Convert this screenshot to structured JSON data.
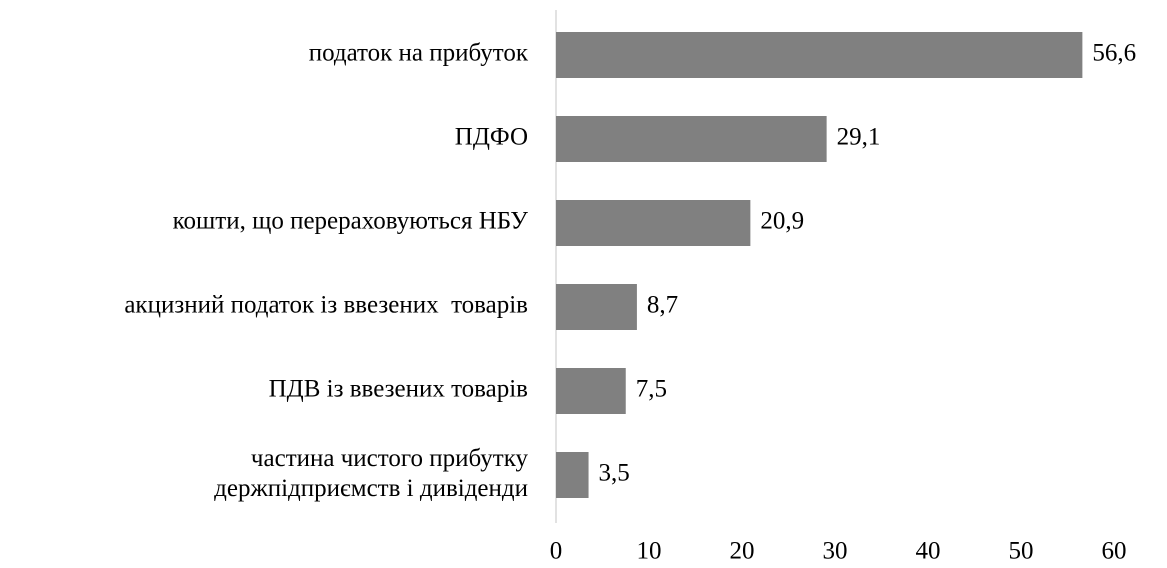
{
  "chart_data": {
    "type": "bar",
    "orientation": "horizontal",
    "categories": [
      "податок на прибуток",
      "ПДФО",
      "кошти, що перераховуються НБУ",
      "акцизний податок із ввезених  товарів",
      "ПДВ із ввезених товарів",
      "частина чистого прибутку\nдержпідприємств і дивіденди"
    ],
    "values": [
      56.6,
      29.1,
      20.9,
      8.7,
      7.5,
      3.5
    ],
    "value_labels": [
      "56,6",
      "29,1",
      "20,9",
      "8,7",
      "7,5",
      "3,5"
    ],
    "color": "#808080",
    "xlim": [
      0,
      60
    ],
    "xticks": [
      0,
      10,
      20,
      30,
      40,
      50,
      60
    ],
    "grid": false
  }
}
